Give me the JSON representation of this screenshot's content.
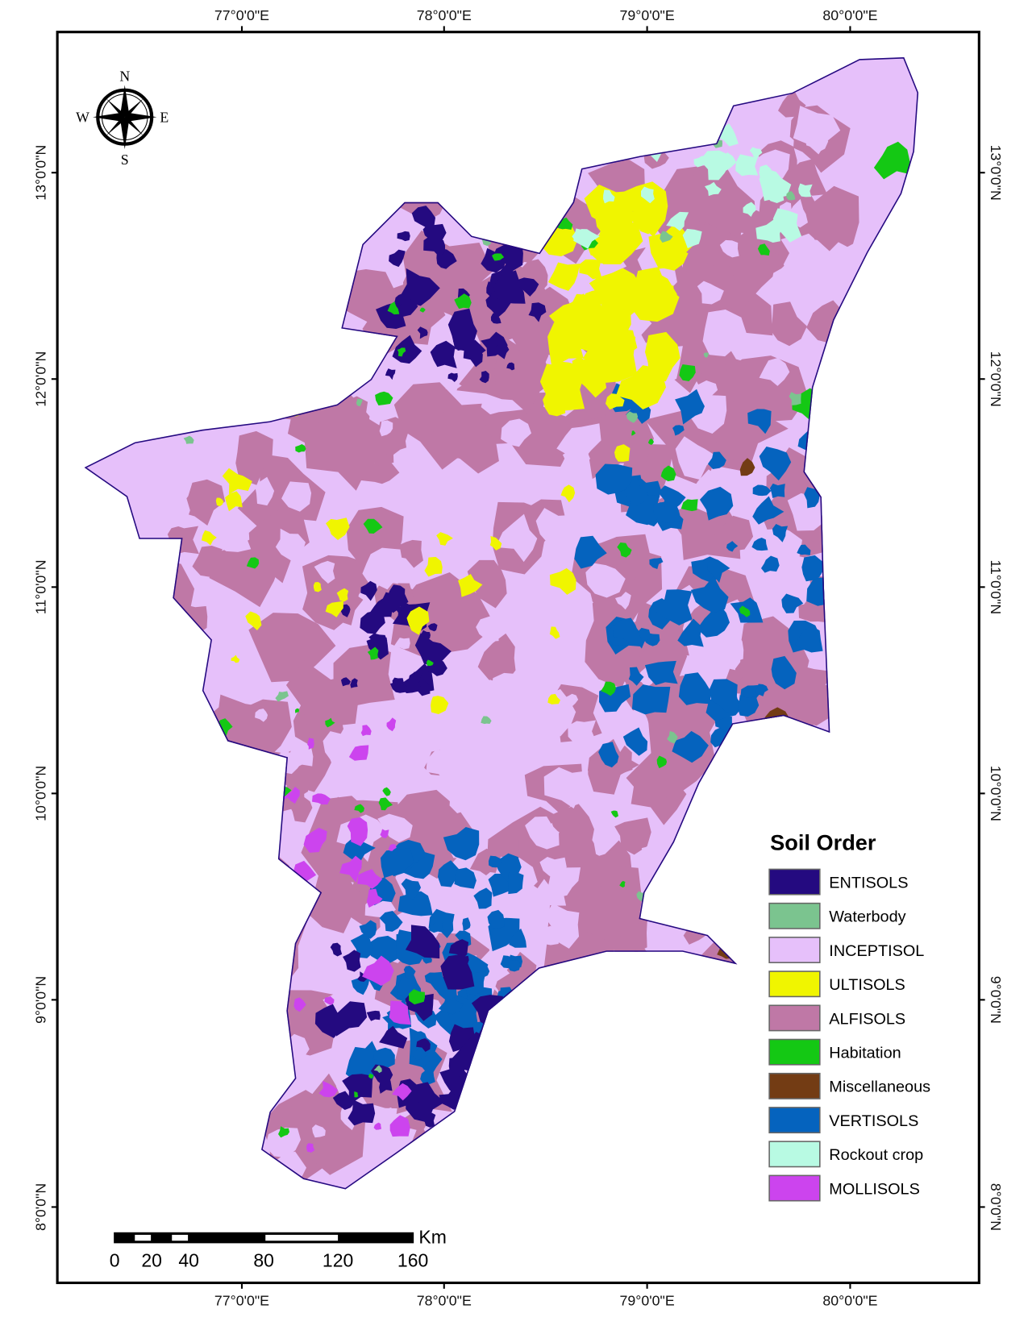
{
  "legend": {
    "title": "Soil Order",
    "items": [
      {
        "label": "ENTISOLS",
        "color": "#240a80"
      },
      {
        "label": "Waterbody",
        "color": "#7bc48f"
      },
      {
        "label": "INCEPTISOL",
        "color": "#e6c0fa"
      },
      {
        "label": "ULTISOLS",
        "color": "#f0f500"
      },
      {
        "label": "ALFISOLS",
        "color": "#bf78a6"
      },
      {
        "label": "Habitation",
        "color": "#14c814"
      },
      {
        "label": "Miscellaneous",
        "color": "#733c14"
      },
      {
        "label": "VERTISOLS",
        "color": "#0563be"
      },
      {
        "label": "Rockout crop",
        "color": "#b8fae3"
      },
      {
        "label": "MOLLISOLS",
        "color": "#cc44ee"
      }
    ]
  },
  "graticule": {
    "longitudes": [
      "77°0'0\"E",
      "78°0'0\"E",
      "79°0'0\"E",
      "80°0'0\"E"
    ],
    "latitudes": [
      "13°0'0\"N",
      "12°0'0\"N",
      "11°0'0\"N",
      "10°0'0\"N",
      "9°0'0\"N",
      "8°0'0\"N"
    ]
  },
  "north_arrow": {
    "n": "N",
    "s": "S",
    "e": "E",
    "w": "W"
  },
  "scale_bar": {
    "unit": "Km",
    "labels": [
      "0",
      "20",
      "40",
      "80",
      "120",
      "160"
    ]
  }
}
